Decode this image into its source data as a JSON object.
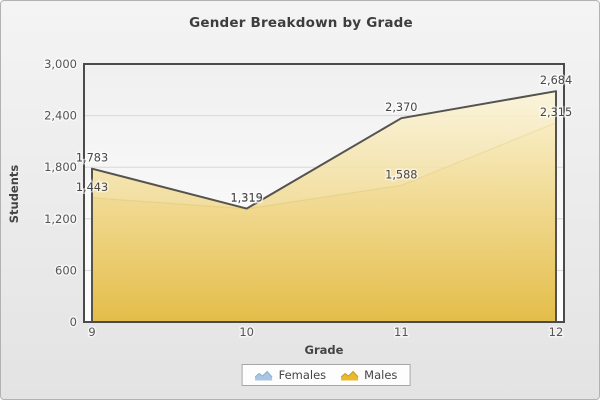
{
  "widget": {
    "title": "Gender Breakdown by Grade"
  },
  "chart_data": {
    "type": "area",
    "title": "Gender Breakdown by Grade",
    "xlabel": "Grade",
    "ylabel": "Students",
    "categories": [
      "9",
      "10",
      "11",
      "12"
    ],
    "series": [
      {
        "name": "Females",
        "values": [
          1443,
          1315,
          1588,
          2315
        ],
        "labels": [
          "1,443",
          "1,315",
          "1,588",
          "2,315"
        ],
        "legend_fill": "#a9c5e2",
        "legend_stroke": "#8cafd2",
        "line_color": "#c6ae67",
        "fill_top": "#f6e5a8",
        "fill_bottom": "#ddb335",
        "fill_opacity": 0.65
      },
      {
        "name": "Males",
        "values": [
          1783,
          1319,
          2370,
          2684
        ],
        "labels": [
          "1,783",
          "1,319",
          "2,370",
          "2,684"
        ],
        "legend_fill": "#e9ba2f",
        "legend_stroke": "#c79d18",
        "line_color": "#55534d",
        "fill_top": "#fdf5d8",
        "fill_bottom": "#e3ba3e",
        "fill_opacity": 0.82
      }
    ],
    "ylim": [
      0,
      3000
    ],
    "yticks": [
      0,
      600,
      1200,
      1800,
      2400,
      3000
    ],
    "ytick_labels": [
      "0",
      "600",
      "1,200",
      "1,800",
      "2,400",
      "3,000"
    ],
    "grid": true,
    "legend_position": "bottom"
  },
  "colors": {
    "frame": "#4b4b4b",
    "grid": "#d8d8d8",
    "plot_bg_top": "#f0f0f0",
    "plot_bg_bottom": "#ffffff",
    "tick_text": "#555555",
    "data_label_text": "#474747",
    "title_text": "#3d3d3d"
  }
}
